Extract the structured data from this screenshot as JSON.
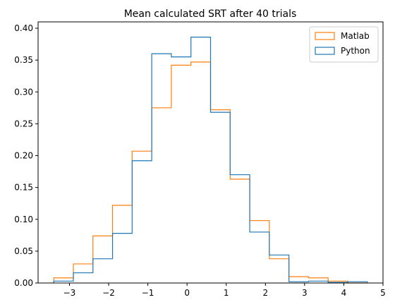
{
  "chart_data": {
    "type": "histogram",
    "title": "Mean calculated SRT after 40 trials",
    "xlabel": "",
    "ylabel": "",
    "xlim": [
      -3.8,
      5.0
    ],
    "ylim": [
      0,
      0.41
    ],
    "xticks": [
      -3,
      -2,
      -1,
      0,
      1,
      2,
      3,
      4,
      5
    ],
    "xtick_labels": [
      "−3",
      "−2",
      "−1",
      "0",
      "1",
      "2",
      "3",
      "4",
      "5"
    ],
    "yticks": [
      0.0,
      0.05,
      0.1,
      0.15,
      0.2,
      0.25,
      0.3,
      0.35,
      0.4
    ],
    "ytick_labels": [
      "0.00",
      "0.05",
      "0.10",
      "0.15",
      "0.20",
      "0.25",
      "0.30",
      "0.35",
      "0.40"
    ],
    "grid": false,
    "legend_position": "top-right",
    "histtype": "step",
    "series": [
      {
        "name": "Matlab",
        "color": "#ff7f0e",
        "bin_edges": [
          -3.4,
          -2.9,
          -2.4,
          -1.9,
          -1.4,
          -0.9,
          -0.4,
          0.1,
          0.6,
          1.1,
          1.6,
          2.1,
          2.6,
          3.1,
          3.6,
          4.1,
          4.6
        ],
        "values": [
          0.008,
          0.03,
          0.074,
          0.122,
          0.207,
          0.275,
          0.342,
          0.347,
          0.272,
          0.163,
          0.098,
          0.038,
          0.01,
          0.008,
          0.003,
          0.0
        ]
      },
      {
        "name": "Python",
        "color": "#1f77b4",
        "bin_edges": [
          -3.4,
          -2.9,
          -2.4,
          -1.9,
          -1.4,
          -0.9,
          -0.4,
          0.1,
          0.6,
          1.1,
          1.6,
          2.1,
          2.6,
          3.1,
          3.6,
          4.1,
          4.6
        ],
        "values": [
          0.003,
          0.016,
          0.038,
          0.078,
          0.192,
          0.36,
          0.355,
          0.386,
          0.268,
          0.17,
          0.08,
          0.044,
          0.002,
          0.003,
          0.001,
          0.002
        ]
      }
    ]
  }
}
